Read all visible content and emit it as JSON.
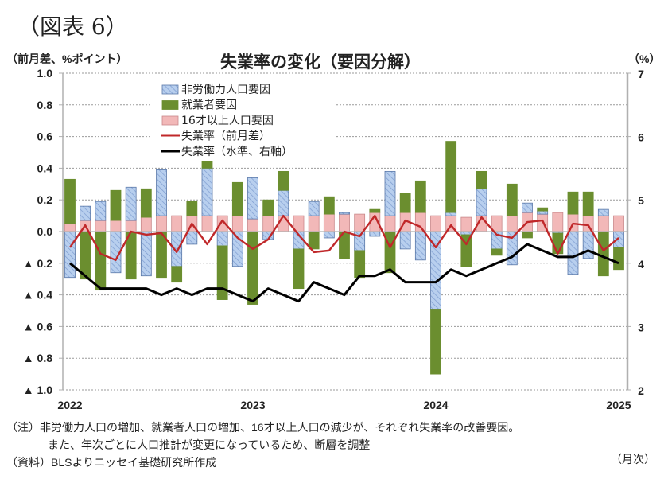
{
  "figure_label": "（図表 6）",
  "left_unit": "（前月差、%ポイント）",
  "right_unit": "（%）",
  "month_unit": "（月次）",
  "notes": {
    "line1": "（注）非労働力人口の増加、就業者人口の増加、16才以上人口の減少が、それぞれ失業率の改善要因。",
    "line2": "また、年次ごとに人口推計が変更になっているため、断層を調整",
    "line3": "（資料）BLSよりニッセイ基礎研究所作成"
  },
  "colors": {
    "nlf": "#b8cfee",
    "nlf_border": "#5a78a8",
    "emp": "#6b8e2f",
    "pop": "#f2b8b8",
    "pop_border": "#c9888a",
    "change_line": "#c0282a",
    "level_line": "#000000",
    "grid": "#9a9a9a",
    "axis": "#b0b0b0"
  },
  "chart_data": {
    "type": "bar",
    "title": "失業率の変化（要因分解）",
    "xlabel": "",
    "ylabel": "（前月差、%ポイント）",
    "y2label": "（%）",
    "ylim": [
      -1.0,
      1.0
    ],
    "y2lim": [
      2,
      7
    ],
    "yticks": [
      1.0,
      0.8,
      0.6,
      0.4,
      0.2,
      0.0,
      -0.2,
      -0.4,
      -0.6,
      -0.8,
      -1.0
    ],
    "ytick_labels": [
      "1.0",
      "0.8",
      "0.6",
      "0.4",
      "0.2",
      "0.0",
      "▲ 0.2",
      "▲ 0.4",
      "▲ 0.6",
      "▲ 0.8",
      "▲ 1.0"
    ],
    "y2ticks": [
      7,
      6,
      5,
      4,
      3,
      2
    ],
    "y2tick_labels": [
      "7",
      "6",
      "5",
      "4",
      "3",
      "2"
    ],
    "xtick_labels": [
      "2022",
      "2023",
      "2024",
      "2025"
    ],
    "xtick_index": [
      0,
      12,
      24,
      36
    ],
    "grid": true,
    "legend_position": "top-center",
    "categories": [
      "2022-01",
      "2022-02",
      "2022-03",
      "2022-04",
      "2022-05",
      "2022-06",
      "2022-07",
      "2022-08",
      "2022-09",
      "2022-10",
      "2022-11",
      "2022-12",
      "2023-01",
      "2023-02",
      "2023-03",
      "2023-04",
      "2023-05",
      "2023-06",
      "2023-07",
      "2023-08",
      "2023-09",
      "2023-10",
      "2023-11",
      "2023-12",
      "2024-01",
      "2024-02",
      "2024-03",
      "2024-04",
      "2024-05",
      "2024-06",
      "2024-07",
      "2024-08",
      "2024-09",
      "2024-10",
      "2024-11",
      "2024-12",
      "2025-01"
    ],
    "series": [
      {
        "name": "非労働力人口要因",
        "kind": "bar",
        "values": [
          -0.29,
          0.09,
          0.12,
          -0.26,
          0.21,
          -0.28,
          0.29,
          -0.22,
          -0.08,
          0.3,
          -0.09,
          -0.22,
          0.26,
          -0.05,
          0.16,
          -0.11,
          0.09,
          -0.04,
          0.01,
          -0.12,
          -0.03,
          0.28,
          -0.11,
          -0.18,
          -0.49,
          0.02,
          -0.02,
          0.17,
          -0.11,
          -0.21,
          0.06,
          0.02,
          -0.01,
          -0.27,
          -0.17,
          0.04,
          -0.1
        ]
      },
      {
        "name": "就業者要因",
        "kind": "bar",
        "values": [
          0.28,
          -0.3,
          -0.37,
          0.19,
          -0.3,
          0.18,
          -0.29,
          -0.1,
          0.09,
          0.13,
          -0.34,
          0.21,
          -0.46,
          0.1,
          0.12,
          -0.25,
          -0.11,
          0.11,
          -0.17,
          -0.17,
          0.02,
          -0.26,
          0.12,
          0.2,
          -0.41,
          0.45,
          -0.2,
          0.11,
          -0.04,
          0.2,
          -0.04,
          0.02,
          -0.13,
          0.14,
          0.15,
          -0.28,
          -0.14
        ]
      },
      {
        "name": "16才以上人口要因",
        "kind": "bar",
        "values": [
          0.05,
          0.07,
          0.07,
          0.07,
          0.07,
          0.09,
          0.1,
          0.1,
          0.1,
          0.1,
          0.1,
          0.1,
          0.08,
          0.1,
          0.1,
          0.1,
          0.1,
          0.11,
          0.11,
          0.11,
          0.12,
          0.1,
          0.12,
          0.12,
          0.1,
          0.1,
          0.09,
          0.1,
          0.1,
          0.1,
          0.12,
          0.11,
          0.12,
          0.11,
          0.1,
          0.1,
          0.1
        ]
      },
      {
        "name": "失業率（前月差）",
        "kind": "line",
        "axis": "left",
        "values": [
          -0.1,
          0.04,
          -0.14,
          -0.18,
          0.0,
          -0.02,
          -0.01,
          -0.13,
          0.05,
          -0.08,
          0.07,
          -0.04,
          -0.11,
          -0.05,
          0.1,
          -0.02,
          -0.13,
          -0.12,
          0.0,
          -0.03,
          0.1,
          -0.1,
          0.07,
          0.03,
          -0.1,
          0.04,
          -0.08,
          0.09,
          -0.02,
          -0.04,
          0.06,
          0.07,
          -0.14,
          0.05,
          0.04,
          -0.12,
          -0.04
        ]
      },
      {
        "name": "失業率（水準、右軸）",
        "kind": "line",
        "axis": "right",
        "values": [
          4.0,
          3.8,
          3.6,
          3.6,
          3.6,
          3.6,
          3.5,
          3.6,
          3.5,
          3.6,
          3.6,
          3.5,
          3.4,
          3.6,
          3.5,
          3.4,
          3.7,
          3.6,
          3.5,
          3.8,
          3.8,
          3.9,
          3.7,
          3.7,
          3.7,
          3.9,
          3.8,
          3.9,
          4.0,
          4.1,
          4.3,
          4.2,
          4.1,
          4.1,
          4.2,
          4.1,
          4.0
        ]
      }
    ]
  }
}
